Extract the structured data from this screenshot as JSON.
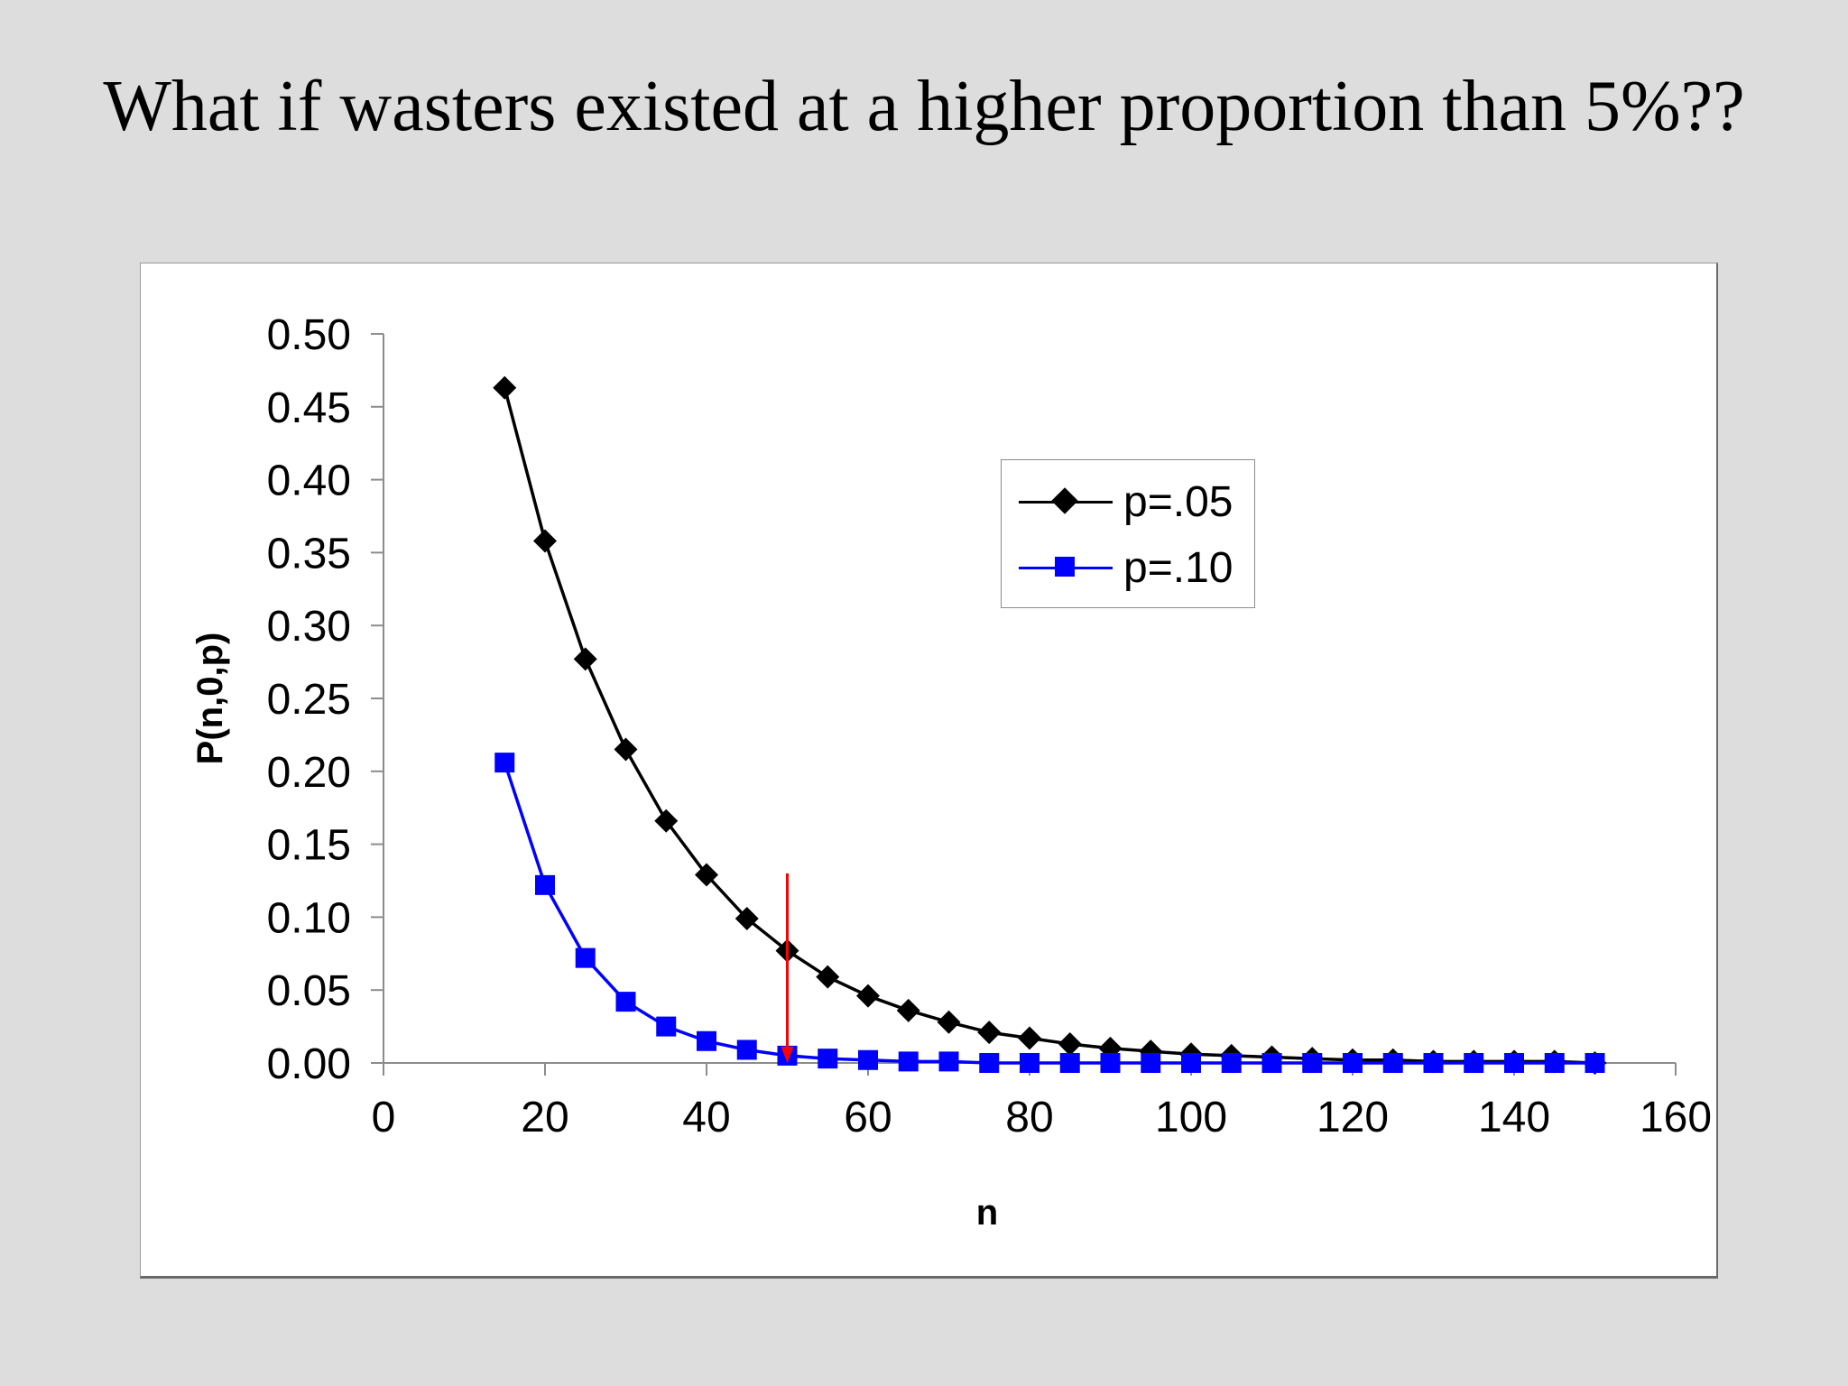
{
  "slide": {
    "title": "What if wasters existed at a higher proportion than 5%??"
  },
  "chart_data": {
    "type": "line",
    "title": "",
    "xlabel": "n",
    "ylabel": "P(n,0,p)",
    "xlim": [
      0,
      160
    ],
    "ylim": [
      0,
      0.5
    ],
    "x_ticks": [
      "0",
      "20",
      "40",
      "60",
      "80",
      "100",
      "120",
      "140",
      "160"
    ],
    "y_ticks": [
      "0.00",
      "0.05",
      "0.10",
      "0.15",
      "0.20",
      "0.25",
      "0.30",
      "0.35",
      "0.40",
      "0.45",
      "0.50"
    ],
    "grid": false,
    "legend_position": "upper right (inside plot)",
    "x": [
      15,
      20,
      25,
      30,
      35,
      40,
      45,
      50,
      55,
      60,
      65,
      70,
      75,
      80,
      85,
      90,
      95,
      100,
      105,
      110,
      115,
      120,
      125,
      130,
      135,
      140,
      145,
      150
    ],
    "series": [
      {
        "name": "p=.05",
        "color": "#000000",
        "marker": "diamond",
        "values": [
          0.463,
          0.358,
          0.277,
          0.215,
          0.166,
          0.129,
          0.099,
          0.077,
          0.059,
          0.046,
          0.036,
          0.028,
          0.021,
          0.017,
          0.013,
          0.01,
          0.008,
          0.006,
          0.005,
          0.004,
          0.003,
          0.002,
          0.002,
          0.001,
          0.001,
          0.001,
          0.001,
          0.0
        ]
      },
      {
        "name": "p=.10",
        "color": "#0000ff",
        "marker": "square",
        "values": [
          0.206,
          0.122,
          0.072,
          0.042,
          0.025,
          0.015,
          0.009,
          0.005,
          0.003,
          0.002,
          0.001,
          0.001,
          0.0,
          0.0,
          0.0,
          0.0,
          0.0,
          0.0,
          0.0,
          0.0,
          0.0,
          0.0,
          0.0,
          0.0,
          0.0,
          0.0,
          0.0,
          0.0
        ]
      }
    ],
    "annotations": [
      {
        "type": "arrow",
        "color": "#ff0000",
        "x": 50,
        "y_from": 0.13,
        "y_to": 0.0,
        "direction": "down"
      }
    ]
  },
  "legend": {
    "items": [
      {
        "label": "p=.05",
        "color": "#000000",
        "marker": "diamond"
      },
      {
        "label": "p=.10",
        "color": "#0000ff",
        "marker": "square"
      }
    ]
  }
}
